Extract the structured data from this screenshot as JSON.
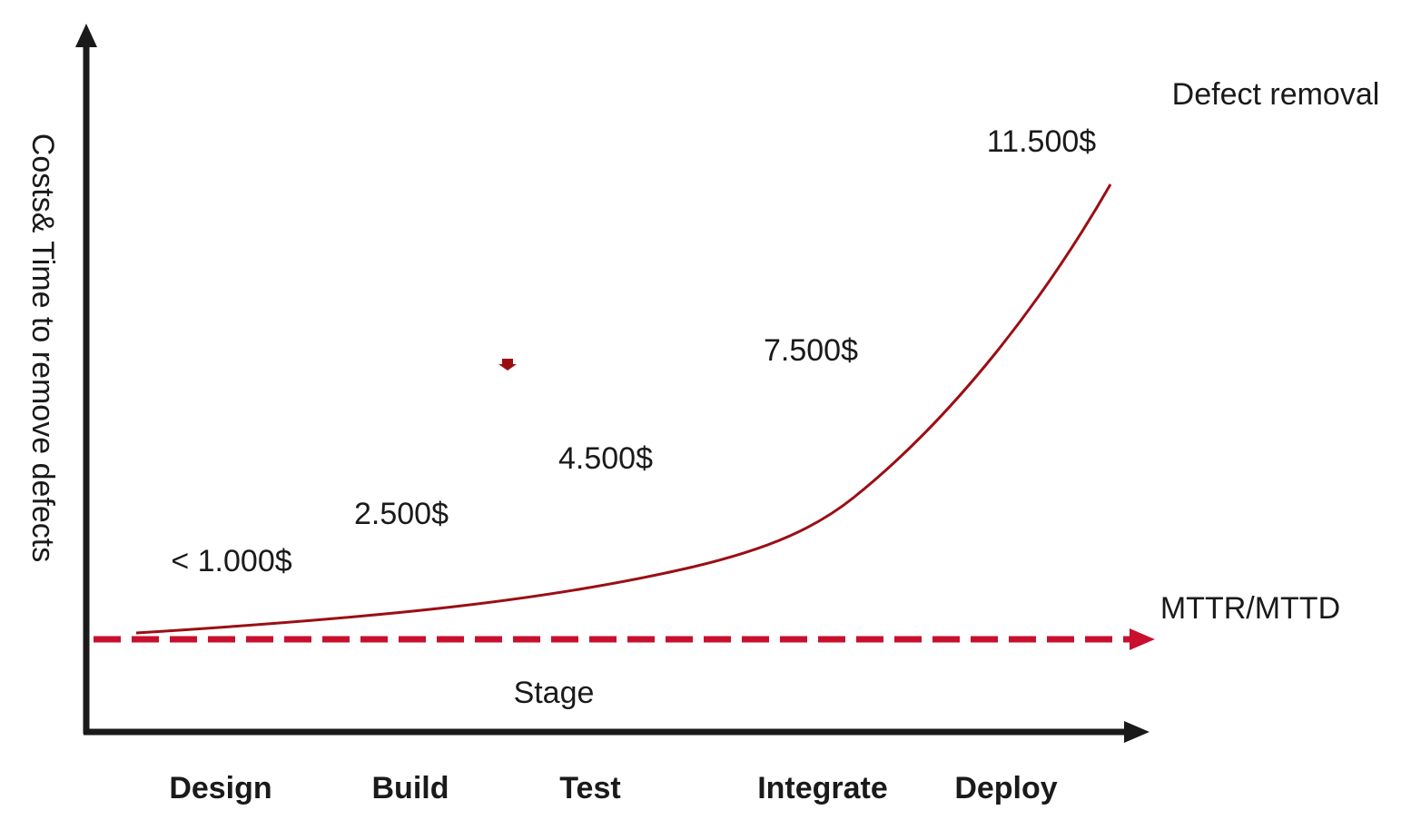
{
  "y_axis_label": "Costs& Time to remove defects",
  "x_axis_label": "Stage",
  "curve_label": "Defect removal",
  "baseline_label": "MTTR/MTTD",
  "costs": [
    "< 1.000$",
    "2.500$",
    "4.500$",
    "7.500$",
    "11.500$"
  ],
  "stages": [
    "Design",
    "Build",
    "Test",
    "Integrate",
    "Deploy"
  ]
}
